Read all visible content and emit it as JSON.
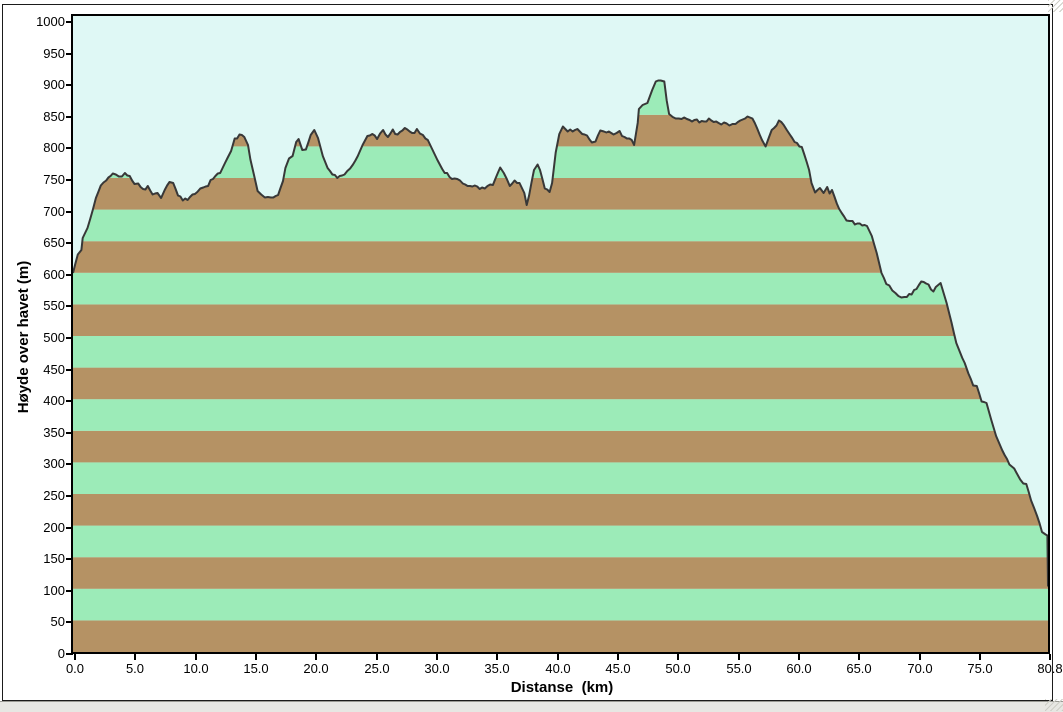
{
  "window": {
    "background": "#ffffff",
    "frame_color": "#1b1b1b",
    "bottom_strip_color": "#e7e7e3"
  },
  "chart_data": {
    "type": "area",
    "title": "",
    "xlabel": "Distanse  (km)",
    "ylabel": "Høyde over havet (m)",
    "xlim": [
      0,
      80.8
    ],
    "ylim": [
      0,
      1000
    ],
    "grid": "off",
    "legend": "none",
    "x_ticks": {
      "values": [
        0,
        5,
        10,
        15,
        20,
        25,
        30,
        35,
        40,
        45,
        50,
        55,
        60,
        65,
        70,
        75,
        80.8
      ],
      "labels": [
        "0.0",
        "5.0",
        "10.0",
        "15.0",
        "20.0",
        "25.0",
        "30.0",
        "35.0",
        "40.0",
        "45.0",
        "50.0",
        "55.0",
        "60.0",
        "65.0",
        "70.0",
        "75.0",
        "80.8"
      ]
    },
    "y_ticks": {
      "values": [
        0,
        50,
        100,
        150,
        200,
        250,
        300,
        350,
        400,
        450,
        500,
        550,
        600,
        650,
        700,
        750,
        800,
        850,
        900,
        950,
        1000
      ],
      "labels": [
        "0",
        "50",
        "100",
        "150",
        "200",
        "250",
        "300",
        "350",
        "400",
        "450",
        "500",
        "550",
        "600",
        "650",
        "700",
        "750",
        "800",
        "850",
        "900",
        "950",
        "1000"
      ]
    },
    "style": {
      "plot_background": "#dff8f5",
      "band_height_m": 50,
      "band_colors": [
        "#b59264",
        "#9cebb8"
      ],
      "band_rule": "bands starting at even multiples of 100 m are brown, alternating with mint green",
      "outline_color": "#383838",
      "axis_color": "#000000",
      "text_color": "#000000"
    },
    "series": [
      {
        "name": "elevation-profile",
        "units": {
          "x": "km",
          "y": "m"
        },
        "points": [
          [
            0,
            600
          ],
          [
            0.2,
            615
          ],
          [
            0.4,
            631
          ],
          [
            0.7,
            636
          ],
          [
            0.8,
            655
          ],
          [
            1.2,
            671
          ],
          [
            1.65,
            700
          ],
          [
            1.9,
            718
          ],
          [
            2.3,
            737
          ],
          [
            2.75,
            747
          ],
          [
            3.3,
            755
          ],
          [
            3.8,
            752
          ],
          [
            4.3,
            757
          ],
          [
            4.7,
            753
          ],
          [
            5.1,
            739
          ],
          [
            5.4,
            742
          ],
          [
            5.8,
            731
          ],
          [
            6.2,
            737
          ],
          [
            6.6,
            723
          ],
          [
            7,
            726
          ],
          [
            7.3,
            718
          ],
          [
            7.6,
            731
          ],
          [
            8,
            745
          ],
          [
            8.3,
            742
          ],
          [
            8.7,
            723
          ],
          [
            9.1,
            715
          ],
          [
            9.5,
            715
          ],
          [
            9.9,
            726
          ],
          [
            10.3,
            729
          ],
          [
            10.8,
            737
          ],
          [
            11.2,
            739
          ],
          [
            11.6,
            750
          ],
          [
            12.2,
            758
          ],
          [
            12.6,
            774
          ],
          [
            12.8,
            782
          ],
          [
            13.1,
            793
          ],
          [
            13.4,
            810
          ],
          [
            13.8,
            820
          ],
          [
            14.2,
            815
          ],
          [
            14.5,
            802
          ],
          [
            14.7,
            779
          ],
          [
            15,
            755
          ],
          [
            15.3,
            728
          ],
          [
            15.6,
            722
          ],
          [
            15.9,
            718
          ],
          [
            16.4,
            720
          ],
          [
            17,
            723
          ],
          [
            17.4,
            745
          ],
          [
            17.6,
            766
          ],
          [
            17.9,
            779
          ],
          [
            18.2,
            785
          ],
          [
            18.5,
            808
          ],
          [
            18.7,
            812
          ],
          [
            19,
            792
          ],
          [
            19.3,
            795
          ],
          [
            19.7,
            818
          ],
          [
            20,
            826
          ],
          [
            20.3,
            813
          ],
          [
            20.7,
            785
          ],
          [
            21.1,
            766
          ],
          [
            21.5,
            755
          ],
          [
            21.9,
            752
          ],
          [
            22.5,
            755
          ],
          [
            23.2,
            771
          ],
          [
            23.6,
            785
          ],
          [
            24,
            802
          ],
          [
            24.4,
            816
          ],
          [
            24.8,
            821
          ],
          [
            25.2,
            813
          ],
          [
            25.7,
            824
          ],
          [
            26.1,
            816
          ],
          [
            26.5,
            826
          ],
          [
            26.9,
            818
          ],
          [
            27.3,
            824
          ],
          [
            27.7,
            829
          ],
          [
            28.1,
            821
          ],
          [
            28.5,
            826
          ],
          [
            29,
            818
          ],
          [
            29.4,
            810
          ],
          [
            29.8,
            794
          ],
          [
            30.4,
            771
          ],
          [
            30.8,
            758
          ],
          [
            31.4,
            750
          ],
          [
            32.3,
            742
          ],
          [
            33.1,
            737
          ],
          [
            33.9,
            734
          ],
          [
            34.8,
            739
          ],
          [
            35.2,
            758
          ],
          [
            35.4,
            766
          ],
          [
            35.7,
            758
          ],
          [
            36.2,
            739
          ],
          [
            36.6,
            745
          ],
          [
            37,
            742
          ],
          [
            37.4,
            726
          ],
          [
            37.6,
            707
          ],
          [
            37.8,
            722
          ],
          [
            38.2,
            763
          ],
          [
            38.5,
            771
          ],
          [
            38.7,
            763
          ],
          [
            39.1,
            734
          ],
          [
            39.5,
            728
          ],
          [
            39.7,
            742
          ],
          [
            40,
            790
          ],
          [
            40.3,
            821
          ],
          [
            40.6,
            829
          ],
          [
            41,
            826
          ],
          [
            41.4,
            824
          ],
          [
            41.8,
            829
          ],
          [
            42.2,
            821
          ],
          [
            42.6,
            816
          ],
          [
            43,
            805
          ],
          [
            43.3,
            808
          ],
          [
            43.7,
            826
          ],
          [
            44,
            821
          ],
          [
            44.4,
            824
          ],
          [
            44.8,
            818
          ],
          [
            45.3,
            824
          ],
          [
            45.7,
            813
          ],
          [
            46.1,
            813
          ],
          [
            46.5,
            802
          ],
          [
            46.8,
            837
          ],
          [
            46.9,
            861
          ],
          [
            47.2,
            866
          ],
          [
            47.6,
            869
          ],
          [
            48,
            889
          ],
          [
            48.3,
            905
          ],
          [
            48.7,
            906
          ],
          [
            49,
            903
          ],
          [
            49.2,
            873
          ],
          [
            49.4,
            853
          ],
          [
            49.7,
            847
          ],
          [
            50.2,
            845
          ],
          [
            51.1,
            842
          ],
          [
            51.9,
            840
          ],
          [
            52.7,
            842
          ],
          [
            53.5,
            837
          ],
          [
            54.4,
            834
          ],
          [
            54.9,
            835
          ],
          [
            55.7,
            845
          ],
          [
            56.1,
            847
          ],
          [
            56.5,
            837
          ],
          [
            57.1,
            810
          ],
          [
            57.4,
            800
          ],
          [
            57.9,
            826
          ],
          [
            58.5,
            839
          ],
          [
            58.9,
            834
          ],
          [
            59.4,
            818
          ],
          [
            59.8,
            808
          ],
          [
            60.4,
            799
          ],
          [
            61,
            763
          ],
          [
            61.2,
            742
          ],
          [
            61.5,
            726
          ],
          [
            61.9,
            734
          ],
          [
            62.2,
            726
          ],
          [
            62.5,
            736
          ],
          [
            62.7,
            726
          ],
          [
            62.9,
            731
          ],
          [
            63.3,
            710
          ],
          [
            63.7,
            692
          ],
          [
            64.1,
            684
          ],
          [
            64.6,
            680
          ],
          [
            65.4,
            677
          ],
          [
            65.8,
            674
          ],
          [
            66.2,
            658
          ],
          [
            66.6,
            631
          ],
          [
            67,
            600
          ],
          [
            67.4,
            584
          ],
          [
            67.9,
            573
          ],
          [
            68.4,
            565
          ],
          [
            68.9,
            560
          ],
          [
            69.5,
            568
          ],
          [
            70.1,
            581
          ],
          [
            70.5,
            587
          ],
          [
            70.9,
            581
          ],
          [
            71.3,
            570
          ],
          [
            71.7,
            581
          ],
          [
            71.9,
            584
          ],
          [
            72.4,
            552
          ],
          [
            72.8,
            521
          ],
          [
            73.2,
            489
          ],
          [
            73.7,
            465
          ],
          [
            73.9,
            457
          ],
          [
            74.2,
            441
          ],
          [
            74.6,
            423
          ],
          [
            74.9,
            421
          ],
          [
            75.3,
            397
          ],
          [
            75.7,
            394
          ],
          [
            76.1,
            367
          ],
          [
            76.5,
            342
          ],
          [
            77,
            320
          ],
          [
            77.4,
            304
          ],
          [
            77.8,
            294
          ],
          [
            78.2,
            283
          ],
          [
            78.5,
            272
          ],
          [
            79,
            266
          ],
          [
            79.4,
            240
          ],
          [
            79.9,
            215
          ],
          [
            80.3,
            191
          ],
          [
            80.6,
            186
          ],
          [
            80.75,
            184
          ],
          [
            80.8,
            104
          ]
        ]
      }
    ]
  }
}
